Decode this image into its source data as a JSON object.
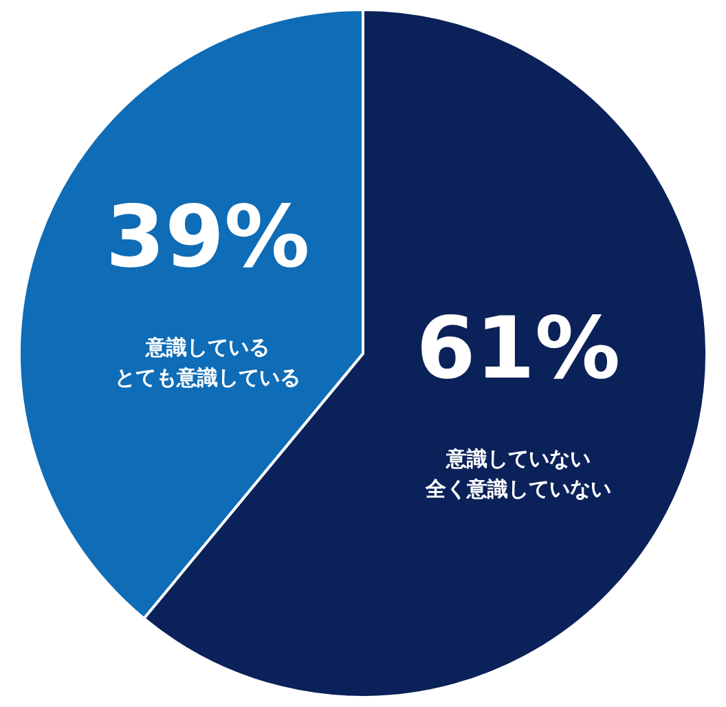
{
  "chart_data": {
    "type": "pie",
    "categories": [
      "意識していない全く意識していない",
      "意識しているとても意識している"
    ],
    "values": [
      61,
      39
    ],
    "colors": [
      "#0b2159",
      "#0f6cb6"
    ],
    "value_labels": [
      "61%",
      "39%"
    ],
    "legend": false
  }
}
